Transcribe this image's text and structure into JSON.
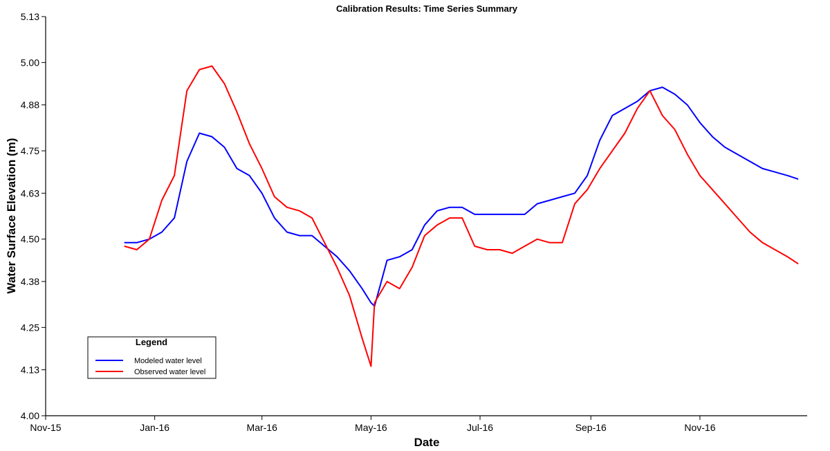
{
  "chart_data": {
    "type": "line",
    "title": "Calibration Results: Time Series Summary",
    "xlabel": "Date",
    "ylabel": "Water Surface Elevation (m)",
    "xlim": [
      "2015-11-01",
      "2016-12-31"
    ],
    "ylim": [
      4.0,
      5.13
    ],
    "x_ticks": [
      {
        "date": "2015-11-01",
        "label": "Nov-15"
      },
      {
        "date": "2016-01-01",
        "label": "Jan-16"
      },
      {
        "date": "2016-03-01",
        "label": "Mar-16"
      },
      {
        "date": "2016-05-01",
        "label": "May-16"
      },
      {
        "date": "2016-07-01",
        "label": "Jul-16"
      },
      {
        "date": "2016-09-01",
        "label": "Sep-16"
      },
      {
        "date": "2016-11-01",
        "label": "Nov-16"
      }
    ],
    "y_ticks": [
      "4.00",
      "4.13",
      "4.25",
      "4.38",
      "4.50",
      "4.63",
      "4.75",
      "4.88",
      "5.00",
      "5.13"
    ],
    "grid": false,
    "legend": {
      "title": "Legend",
      "position": "bottom-left"
    },
    "series": [
      {
        "name": "Modeled water level",
        "color": "#0000ff",
        "x": [
          "2015-12-15",
          "2015-12-22",
          "2015-12-29",
          "2016-01-05",
          "2016-01-12",
          "2016-01-19",
          "2016-01-26",
          "2016-02-02",
          "2016-02-09",
          "2016-02-16",
          "2016-02-23",
          "2016-03-01",
          "2016-03-08",
          "2016-03-15",
          "2016-03-22",
          "2016-03-29",
          "2016-04-05",
          "2016-04-12",
          "2016-04-19",
          "2016-04-26",
          "2016-05-01",
          "2016-05-03",
          "2016-05-10",
          "2016-05-17",
          "2016-05-24",
          "2016-05-31",
          "2016-06-07",
          "2016-06-14",
          "2016-06-21",
          "2016-06-28",
          "2016-07-05",
          "2016-07-12",
          "2016-07-19",
          "2016-07-26",
          "2016-08-02",
          "2016-08-09",
          "2016-08-16",
          "2016-08-23",
          "2016-08-30",
          "2016-09-06",
          "2016-09-13",
          "2016-09-20",
          "2016-09-27",
          "2016-10-04",
          "2016-10-11",
          "2016-10-18",
          "2016-10-25",
          "2016-11-01",
          "2016-11-08",
          "2016-11-15",
          "2016-11-22",
          "2016-11-29",
          "2016-12-06",
          "2016-12-13",
          "2016-12-20",
          "2016-12-26"
        ],
        "y": [
          4.49,
          4.49,
          4.5,
          4.52,
          4.56,
          4.72,
          4.8,
          4.79,
          4.76,
          4.7,
          4.68,
          4.63,
          4.56,
          4.52,
          4.51,
          4.51,
          4.48,
          4.45,
          4.41,
          4.36,
          4.32,
          4.31,
          4.44,
          4.45,
          4.47,
          4.54,
          4.58,
          4.59,
          4.59,
          4.57,
          4.57,
          4.57,
          4.57,
          4.57,
          4.6,
          4.61,
          4.62,
          4.63,
          4.68,
          4.78,
          4.85,
          4.87,
          4.89,
          4.92,
          4.93,
          4.91,
          4.88,
          4.83,
          4.79,
          4.76,
          4.74,
          4.72,
          4.7,
          4.69,
          4.68,
          4.67
        ]
      },
      {
        "name": "Observed water level",
        "color": "#ff0000",
        "x": [
          "2015-12-15",
          "2015-12-22",
          "2015-12-29",
          "2016-01-05",
          "2016-01-12",
          "2016-01-19",
          "2016-01-26",
          "2016-02-02",
          "2016-02-09",
          "2016-02-16",
          "2016-02-23",
          "2016-03-01",
          "2016-03-08",
          "2016-03-15",
          "2016-03-22",
          "2016-03-29",
          "2016-04-05",
          "2016-04-12",
          "2016-04-19",
          "2016-04-26",
          "2016-05-01",
          "2016-05-03",
          "2016-05-10",
          "2016-05-17",
          "2016-05-24",
          "2016-05-31",
          "2016-06-07",
          "2016-06-14",
          "2016-06-21",
          "2016-06-28",
          "2016-07-05",
          "2016-07-12",
          "2016-07-19",
          "2016-07-26",
          "2016-08-02",
          "2016-08-09",
          "2016-08-16",
          "2016-08-23",
          "2016-08-30",
          "2016-09-06",
          "2016-09-13",
          "2016-09-20",
          "2016-09-27",
          "2016-10-04",
          "2016-10-11",
          "2016-10-18",
          "2016-10-25",
          "2016-11-01",
          "2016-11-08",
          "2016-11-15",
          "2016-11-22",
          "2016-11-29",
          "2016-12-06",
          "2016-12-13",
          "2016-12-20",
          "2016-12-26"
        ],
        "y": [
          4.48,
          4.47,
          4.5,
          4.61,
          4.68,
          4.92,
          4.98,
          4.99,
          4.94,
          4.86,
          4.77,
          4.7,
          4.62,
          4.59,
          4.58,
          4.56,
          4.49,
          4.42,
          4.34,
          4.22,
          4.14,
          4.32,
          4.38,
          4.36,
          4.42,
          4.51,
          4.54,
          4.56,
          4.56,
          4.48,
          4.47,
          4.47,
          4.46,
          4.48,
          4.5,
          4.49,
          4.49,
          4.6,
          4.64,
          4.7,
          4.75,
          4.8,
          4.87,
          4.92,
          4.85,
          4.81,
          4.74,
          4.68,
          4.64,
          4.6,
          4.56,
          4.52,
          4.49,
          4.47,
          4.45,
          4.43
        ]
      }
    ]
  }
}
